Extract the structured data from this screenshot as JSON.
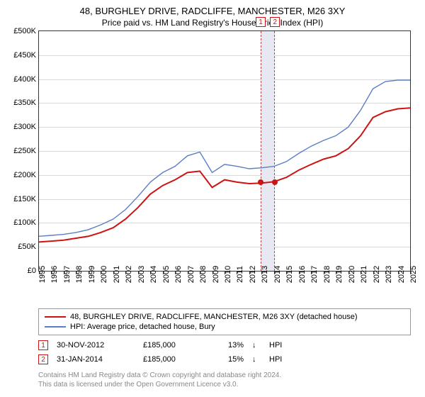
{
  "title": "48, BURGHLEY DRIVE, RADCLIFFE, MANCHESTER, M26 3XY",
  "subtitle": "Price paid vs. HM Land Registry's House Price Index (HPI)",
  "chart": {
    "type": "line",
    "background_color": "#ffffff",
    "grid_color": "#d9d9d9",
    "border_color": "#333333",
    "ylim": [
      0,
      500000
    ],
    "ytick_step": 50000,
    "yticks_labels": [
      "£0",
      "£50K",
      "£100K",
      "£150K",
      "£200K",
      "£250K",
      "£300K",
      "£350K",
      "£400K",
      "£450K",
      "£500K"
    ],
    "xyears": [
      1995,
      1996,
      1997,
      1998,
      1999,
      2000,
      2001,
      2002,
      2003,
      2004,
      2005,
      2006,
      2007,
      2008,
      2009,
      2010,
      2011,
      2012,
      2013,
      2014,
      2015,
      2016,
      2017,
      2018,
      2019,
      2020,
      2021,
      2022,
      2023,
      2024,
      2025
    ],
    "label_fontsize": 11,
    "series": [
      {
        "name": "property",
        "label": "48, BURGHLEY DRIVE, RADCLIFFE, MANCHESTER, M26 3XY (detached house)",
        "color": "#cd1313",
        "line_width": 2,
        "values": [
          60000,
          62000,
          64000,
          68000,
          72000,
          80000,
          90000,
          108000,
          132000,
          160000,
          178000,
          190000,
          205000,
          208000,
          174000,
          190000,
          185000,
          182000,
          183000,
          186000,
          195000,
          210000,
          222000,
          233000,
          240000,
          255000,
          282000,
          320000,
          332000,
          338000,
          340000
        ]
      },
      {
        "name": "hpi",
        "label": "HPI: Average price, detached house, Bury",
        "color": "#5a7fc4",
        "line_width": 1.4,
        "values": [
          72000,
          74000,
          76000,
          80000,
          86000,
          96000,
          108000,
          128000,
          155000,
          185000,
          205000,
          218000,
          240000,
          248000,
          205000,
          222000,
          218000,
          213000,
          215000,
          218000,
          228000,
          245000,
          260000,
          272000,
          282000,
          300000,
          335000,
          380000,
          395000,
          398000,
          398000
        ]
      }
    ],
    "highlight": {
      "x_start": 2012.92,
      "x_end": 2014.08,
      "band_color": "#e8e8f2",
      "dash_color": "#b44"
    },
    "sale_points": [
      {
        "n": 1,
        "x": 2012.92,
        "y": 185000,
        "color": "#cd1313"
      },
      {
        "n": 2,
        "x": 2014.08,
        "y": 185000,
        "color": "#cd1313"
      }
    ],
    "dot_radius": 4
  },
  "legend": {
    "items": [
      {
        "color": "#cd1313",
        "label": "48, BURGHLEY DRIVE, RADCLIFFE, MANCHESTER, M26 3XY (detached house)",
        "thick": 2
      },
      {
        "color": "#5a7fc4",
        "label": "HPI: Average price, detached house, Bury",
        "thick": 1.4
      }
    ]
  },
  "sales": [
    {
      "n": "1",
      "date": "30-NOV-2012",
      "price": "£185,000",
      "pct": "13%",
      "arrow": "↓",
      "vs": "HPI",
      "box_color": "#cd1313"
    },
    {
      "n": "2",
      "date": "31-JAN-2014",
      "price": "£185,000",
      "pct": "15%",
      "arrow": "↓",
      "vs": "HPI",
      "box_color": "#cd1313"
    }
  ],
  "footer_line1": "Contains HM Land Registry data © Crown copyright and database right 2024.",
  "footer_line2": "This data is licensed under the Open Government Licence v3.0."
}
